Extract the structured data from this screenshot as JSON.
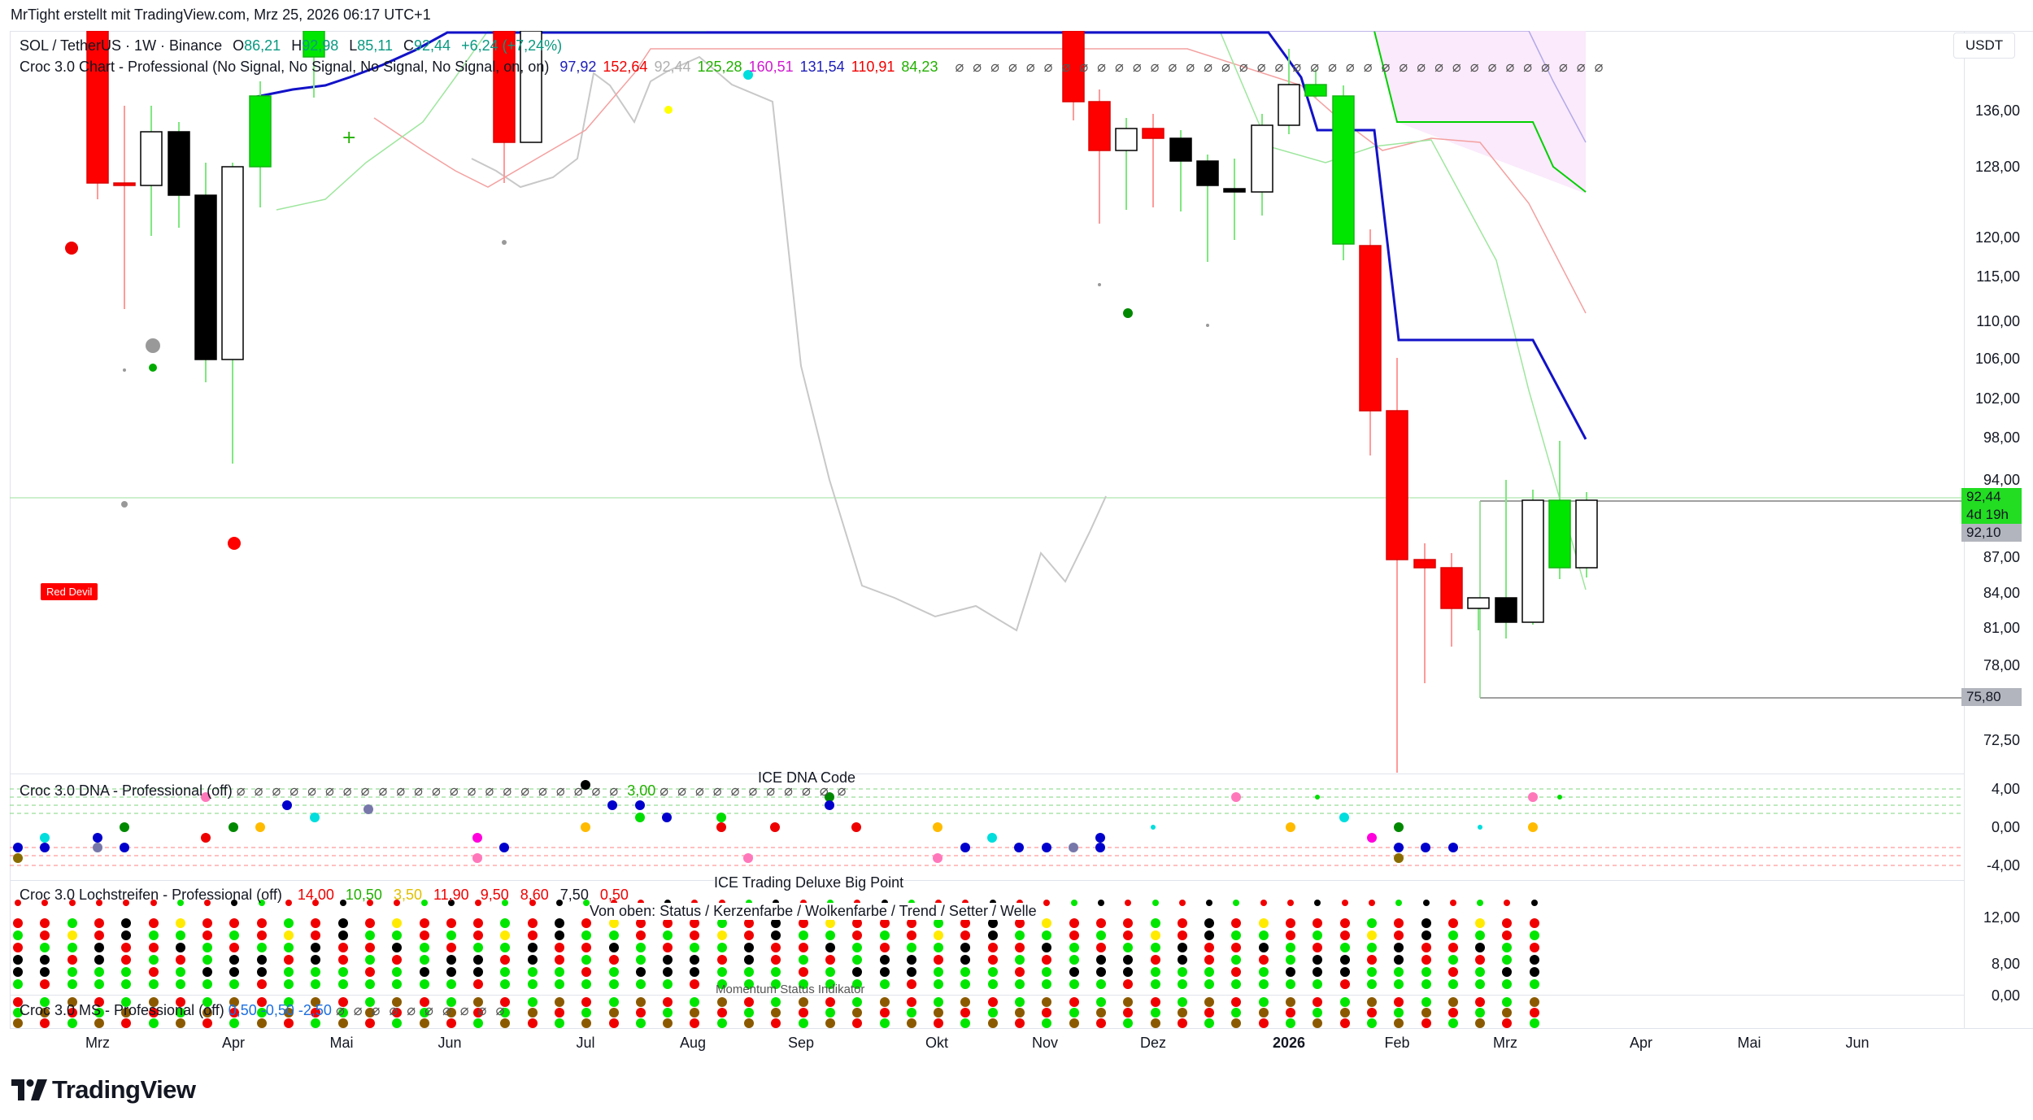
{
  "credit": "MrTight erstellt mit TradingView.com, Mrz 25, 2026 06:17 UTC+1",
  "currency_button": "USDT",
  "legend_main": {
    "symbol": "SOL / TetherUS · 1W · Binance",
    "o_label": "O",
    "o_value": "86,21",
    "h_label": "H",
    "h_value": "92,98",
    "l_label": "L",
    "l_value": "85,11",
    "c_label": "C",
    "c_value": "92,44",
    "change": "+6,24 (+7,24%)"
  },
  "legend_indicator": {
    "name": "Croc 3.0 Chart - Professional (No Signal, No Signal, No Signal, No Signal, on, on)",
    "values": [
      {
        "text": "97,92",
        "color": "#1d1db8"
      },
      {
        "text": "152,64",
        "color": "#f00000"
      },
      {
        "text": "92,44",
        "color": "#b0b0b0"
      },
      {
        "text": "125,28",
        "color": "#22b000"
      },
      {
        "text": "160,51",
        "color": "#d01ad0"
      },
      {
        "text": "131,54",
        "color": "#1d1db8"
      },
      {
        "text": "110,91",
        "color": "#f00000"
      },
      {
        "text": "84,23",
        "color": "#22b000"
      }
    ]
  },
  "price_scale": [
    "136,00",
    "128,00",
    "120,00",
    "115,00",
    "110,00",
    "106,00",
    "102,00",
    "98,00",
    "94,00",
    "87,00",
    "84,00",
    "81,00",
    "78,00",
    "75,80",
    "72,50"
  ],
  "price_tags": {
    "current": "92,44",
    "countdown": "4d 19h",
    "prev": "92,10",
    "low_line": "75,80"
  },
  "time_axis": [
    "Mrz",
    "Apr",
    "Mai",
    "Jun",
    "Jul",
    "Aug",
    "Sep",
    "Okt",
    "Nov",
    "Dez",
    "2026",
    "Feb",
    "Mrz",
    "Apr",
    "Mai",
    "Jun"
  ],
  "red_devil_label": "Red Devil",
  "dna_pane": {
    "center_title": "ICE DNA Code",
    "title": "Croc 3.0 DNA - Professional (off)",
    "value": "3,00",
    "scale": [
      "4,00",
      "0,00",
      "-4,00"
    ]
  },
  "loch_pane": {
    "center_title": "ICE Trading Deluxe Big Point",
    "subtitle": "Von oben: Status / Kerzenfarbe / Wolkenfarbe / Trend / Setter / Welle",
    "title": "Croc 3.0 Lochstreifen - Professional (off)",
    "values": [
      {
        "text": "14,00",
        "color": "#f00000"
      },
      {
        "text": "10,50",
        "color": "#22b000"
      },
      {
        "text": "3,50",
        "color": "#e0c000"
      },
      {
        "text": "11,90",
        "color": "#f00000"
      },
      {
        "text": "9,50",
        "color": "#f00000"
      },
      {
        "text": "8,60",
        "color": "#f00000"
      },
      {
        "text": "7,50",
        "color": "#131722"
      },
      {
        "text": "0,50",
        "color": "#f00000"
      }
    ],
    "scale": [
      "12,00",
      "8,00",
      "0,00"
    ]
  },
  "ms_pane": {
    "center_title": "Momentum Status Indikator",
    "title": "Croc 3.0 MS - Professional (off)",
    "values": [
      "0,50",
      "-0,50",
      "-2,50"
    ]
  },
  "brand": "TradingView",
  "colors": {
    "up": "#00e600",
    "down": "#ff0000",
    "neutral_up": "#ffffff",
    "neutral_down": "#000000",
    "blue_line": "#1212c8",
    "green_line": "#00c800",
    "price_tag": "#22dd22",
    "gray_tag": "#b2b5be"
  }
}
